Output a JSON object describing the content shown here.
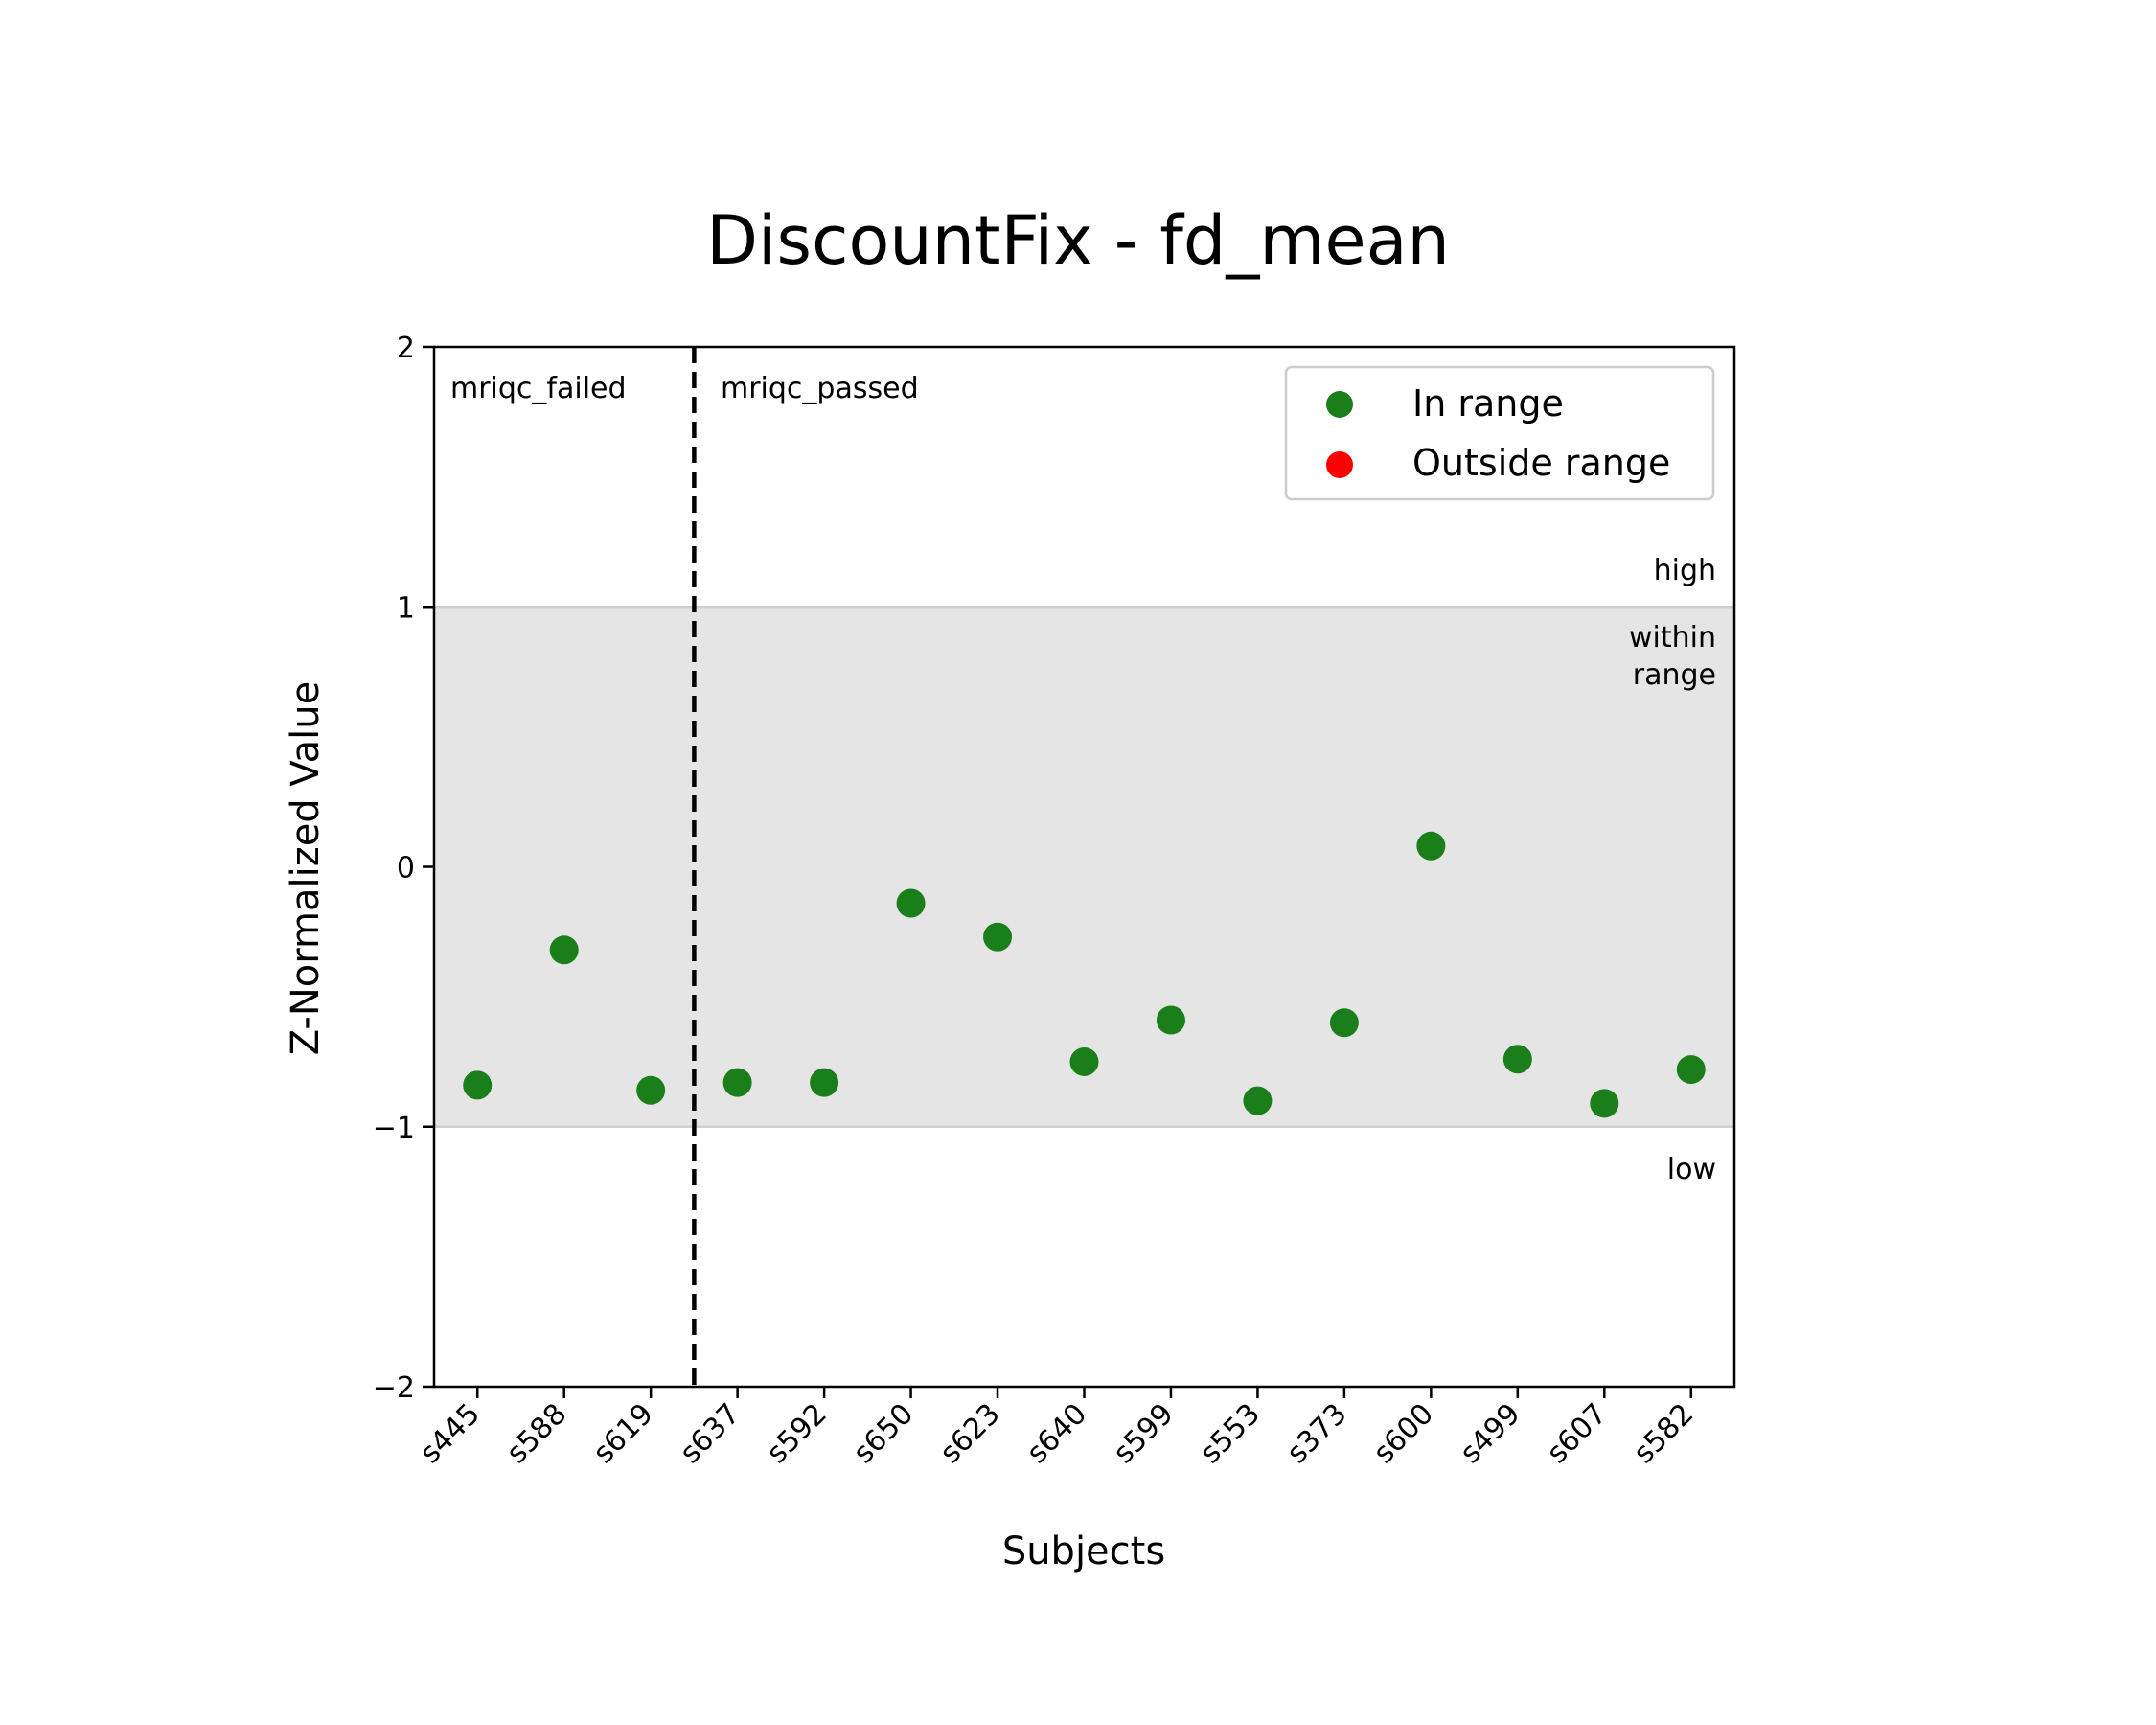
{
  "chart_data": {
    "type": "scatter",
    "title": "DiscountFix - fd_mean",
    "xlabel": "Subjects",
    "ylabel": "Z-Normalized Value",
    "ylim": [
      -2,
      2
    ],
    "yticks": [
      2,
      1,
      0,
      -1,
      -2
    ],
    "ytick_labels": [
      "2",
      "1",
      "0",
      "−1",
      "−2"
    ],
    "categories": [
      "s445",
      "s588",
      "s619",
      "s637",
      "s592",
      "s650",
      "s623",
      "s640",
      "s599",
      "s553",
      "s373",
      "s600",
      "s499",
      "s607",
      "s582"
    ],
    "values": [
      -0.84,
      -0.32,
      -0.86,
      -0.83,
      -0.83,
      -0.14,
      -0.27,
      -0.75,
      -0.59,
      -0.9,
      -0.6,
      0.08,
      -0.74,
      -0.91,
      -0.78
    ],
    "status": [
      "in",
      "in",
      "in",
      "in",
      "in",
      "in",
      "in",
      "in",
      "in",
      "in",
      "in",
      "in",
      "in",
      "in",
      "in"
    ],
    "range_band": [
      -1,
      1
    ],
    "divider_after_index": 2,
    "group_labels": {
      "left": "mriqc_failed",
      "right": "mriqc_passed"
    },
    "zone_labels": {
      "high": "high",
      "within": [
        "within",
        "range"
      ],
      "low": "low"
    },
    "legend": [
      {
        "label": "In range",
        "color": "#1a7f1a"
      },
      {
        "label": "Outside range",
        "color": "#ff0000"
      }
    ],
    "legend_position": "top-right",
    "colors": {
      "in": "#1a7f1a",
      "out": "#ff0000",
      "band": "#e5e5e5",
      "band_edge": "#cfcfcf"
    }
  }
}
